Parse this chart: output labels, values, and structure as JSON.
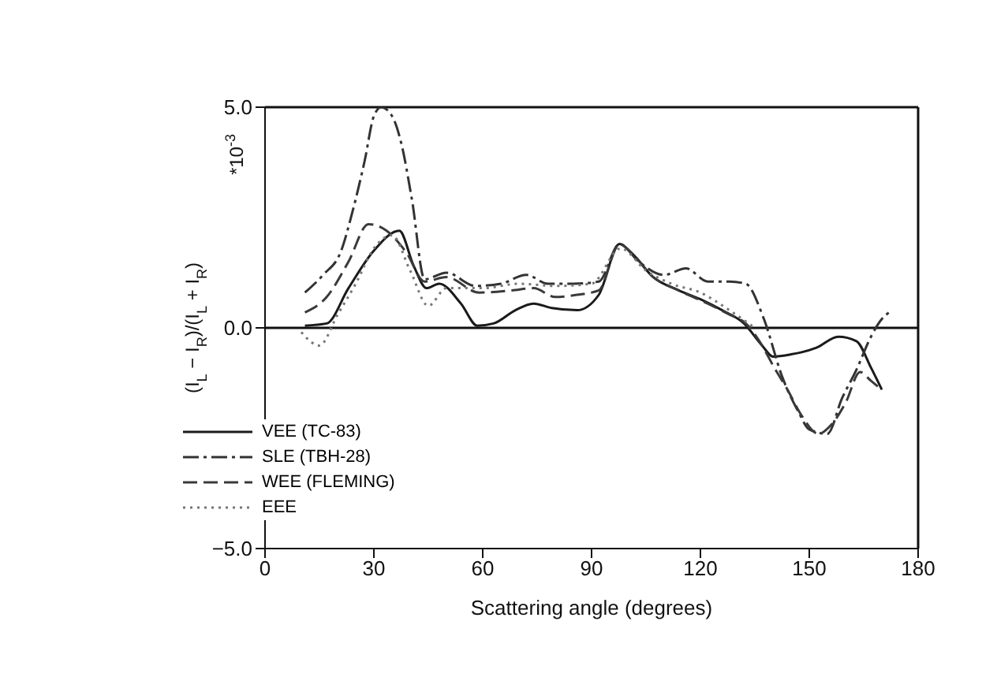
{
  "chart_data": {
    "type": "line",
    "xlabel": "Scattering angle (degrees)",
    "ylabel": "(I$_{L}$ − I$_{R}$)/(I$_{L}$ + I$_{R}$)",
    "annotations": [
      "*10$^{-3}$"
    ],
    "xlim": [
      0,
      180
    ],
    "xticks": [
      0,
      30,
      60,
      90,
      120,
      150,
      180
    ],
    "ylim": [
      -5,
      5
    ],
    "yticks": [
      {
        "value": 5,
        "label": "5.0"
      },
      {
        "value": 0,
        "label": "0.0"
      },
      {
        "value": -5,
        "label": "−5.0"
      }
    ],
    "grid": false,
    "legend": "bottom left",
    "marker": "none",
    "ref_lines": [
      {
        "axis": "y",
        "value": 0,
        "color": "#111111",
        "line_style": "solid"
      }
    ],
    "series": [
      {
        "name": "VEE (TC-83)",
        "color": "#1a1a1a",
        "line_style": "solid",
        "x": [
          11,
          17,
          23,
          30,
          37,
          41,
          44.5,
          48,
          54,
          58.5,
          63,
          69,
          74,
          79,
          86,
          92,
          97.7,
          101,
          107,
          114,
          120,
          126,
          132,
          137,
          140,
          145,
          152,
          158,
          163,
          167,
          170
        ],
        "values": [
          0.05,
          0.1,
          0.9,
          1.75,
          2.2,
          1.4,
          0.9,
          1.0,
          0.55,
          0.05,
          0.1,
          0.4,
          0.55,
          0.45,
          0.4,
          0.75,
          1.9,
          1.7,
          1.15,
          0.85,
          0.65,
          0.4,
          0.1,
          -0.4,
          -0.65,
          -0.6,
          -0.45,
          -0.2,
          -0.3,
          -0.9,
          -1.4
        ]
      },
      {
        "name": "SLE (TBH-28)",
        "color": "#333333",
        "line_style": "dashdot",
        "x": [
          11,
          16,
          21,
          24,
          27.5,
          30,
          32,
          35,
          37.5,
          40.5,
          44,
          50,
          58,
          65,
          72,
          78,
          85,
          92,
          97.7,
          103,
          110,
          116,
          122,
          128,
          132.5,
          137.5,
          142.5,
          147,
          150,
          155,
          159,
          163,
          167,
          170,
          172
        ],
        "values": [
          0.8,
          1.2,
          1.75,
          2.6,
          3.8,
          4.8,
          5.0,
          4.8,
          4.2,
          2.9,
          1.1,
          1.25,
          0.95,
          1.0,
          1.2,
          1.0,
          1.0,
          1.05,
          1.9,
          1.5,
          1.2,
          1.35,
          1.05,
          1.05,
          1.0,
          0.2,
          -1.1,
          -1.9,
          -2.3,
          -2.4,
          -1.6,
          -0.95,
          -0.2,
          0.2,
          0.35
        ]
      },
      {
        "name": "WEE (FLEMING)",
        "color": "#3a3a3a",
        "line_style": "dashed",
        "x": [
          11,
          17,
          23,
          28.5,
          33.5,
          39,
          44,
          50,
          59,
          68,
          74,
          80,
          86,
          92,
          97.7,
          101,
          107,
          114,
          122,
          128,
          132.5,
          137,
          140,
          144,
          148,
          152.5,
          156,
          160,
          164,
          167,
          170
        ],
        "values": [
          0.35,
          0.7,
          1.5,
          2.35,
          2.2,
          1.7,
          1.05,
          1.15,
          0.8,
          0.85,
          0.9,
          0.7,
          0.75,
          0.85,
          1.9,
          1.7,
          1.15,
          0.85,
          0.55,
          0.3,
          0.1,
          -0.4,
          -0.85,
          -1.4,
          -2.0,
          -2.4,
          -2.2,
          -1.7,
          -1.0,
          -1.2,
          -1.4
        ]
      },
      {
        "name": "EEE",
        "color": "#777777",
        "line_style": "dotted",
        "x": [
          10,
          15,
          20,
          25,
          30,
          35,
          40,
          45,
          50,
          60,
          70,
          80,
          90,
          98,
          105,
          112,
          120,
          128,
          135
        ],
        "values": [
          -0.1,
          -0.4,
          0.3,
          1.0,
          1.8,
          2.1,
          1.3,
          0.5,
          0.9,
          0.9,
          1.0,
          0.95,
          1.0,
          1.8,
          1.3,
          1.0,
          0.8,
          0.4,
          0.0
        ]
      }
    ]
  }
}
